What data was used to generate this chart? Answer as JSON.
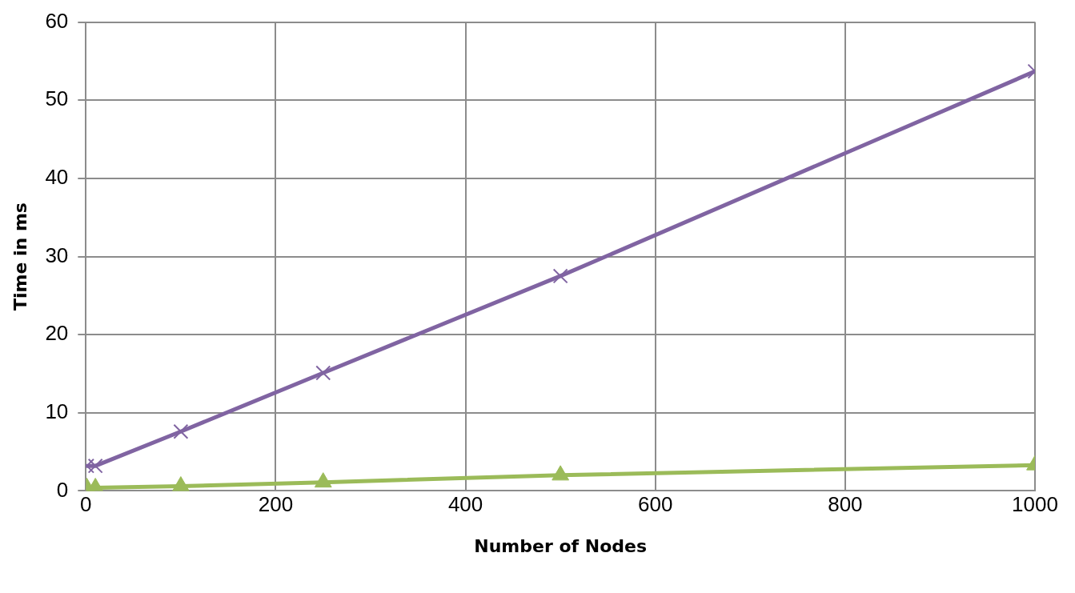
{
  "chart_data": {
    "type": "line",
    "xlabel": "Number of Nodes",
    "ylabel": "Time in ms",
    "x": [
      1,
      10,
      100,
      250,
      500,
      1000
    ],
    "series": [
      {
        "color": "#9bbb59",
        "marker": "triangle",
        "values": [
          0.4,
          0.4,
          0.6,
          1.1,
          2.0,
          3.3
        ]
      },
      {
        "color": "#8064a2",
        "marker": "cross",
        "values": [
          3.2,
          3.2,
          7.6,
          15.1,
          27.5,
          53.7
        ]
      }
    ],
    "xlim": [
      0,
      1000
    ],
    "xticks": [
      0,
      200,
      400,
      600,
      800,
      1000
    ],
    "ylim": [
      0,
      60
    ],
    "yticks": [
      0,
      10,
      20,
      30,
      40,
      50,
      60
    ],
    "grid": true,
    "line_style": "solid"
  }
}
